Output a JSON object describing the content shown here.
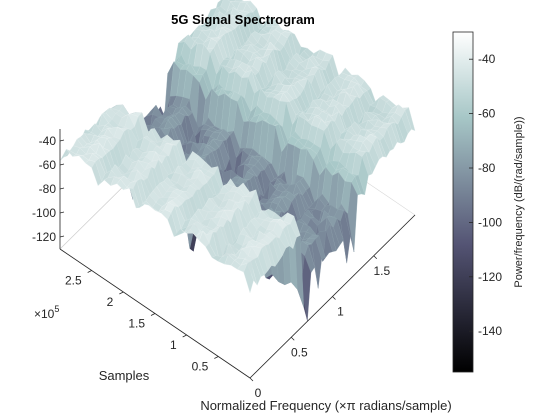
{
  "chart_data": {
    "type": "surface",
    "title": "5G Signal Spectrogram",
    "xlabel": "Normalized Frequency (×π radians/sample)",
    "ylabel": "Samples",
    "y_multiplier_label": "×10",
    "y_multiplier_exp": "5",
    "colorbar_label": "Power/frequency (dB/(rad/sample))",
    "x_ticks": [
      "0",
      "0.5",
      "1",
      "1.5"
    ],
    "x_tick_values": [
      0,
      0.5,
      1,
      1.5
    ],
    "xlim": [
      0,
      2
    ],
    "y_ticks": [
      "0.5",
      "1",
      "1.5",
      "2",
      "2.5"
    ],
    "y_tick_values": [
      0.5,
      1,
      1.5,
      2,
      2.5
    ],
    "ylim": [
      0,
      3
    ],
    "z_ticks": [
      "-40",
      "-60",
      "-80",
      "-100",
      "-120"
    ],
    "z_tick_values": [
      -40,
      -60,
      -80,
      -100,
      -120
    ],
    "colorbar_ticks": [
      "-40",
      "-60",
      "-80",
      "-100",
      "-120",
      "-140"
    ],
    "colorbar_tick_values": [
      -40,
      -60,
      -80,
      -100,
      -120,
      -140
    ],
    "clim": [
      -155,
      -30
    ],
    "colormap": "bone",
    "surface": {
      "frequency_bands": [
        {
          "from": 0.0,
          "to": 0.62,
          "level_db": -45
        },
        {
          "from": 0.62,
          "to": 0.72,
          "level_db": -105
        },
        {
          "from": 0.72,
          "to": 1.3,
          "level_db": -82
        },
        {
          "from": 1.3,
          "to": 1.42,
          "level_db": -60
        },
        {
          "from": 1.42,
          "to": 2.0,
          "level_db": -48
        }
      ],
      "time_blocks": 5
    },
    "colors": {
      "axis": "#262626",
      "grid": "#d9d9d9",
      "surface_edge": "#ffffff"
    }
  }
}
